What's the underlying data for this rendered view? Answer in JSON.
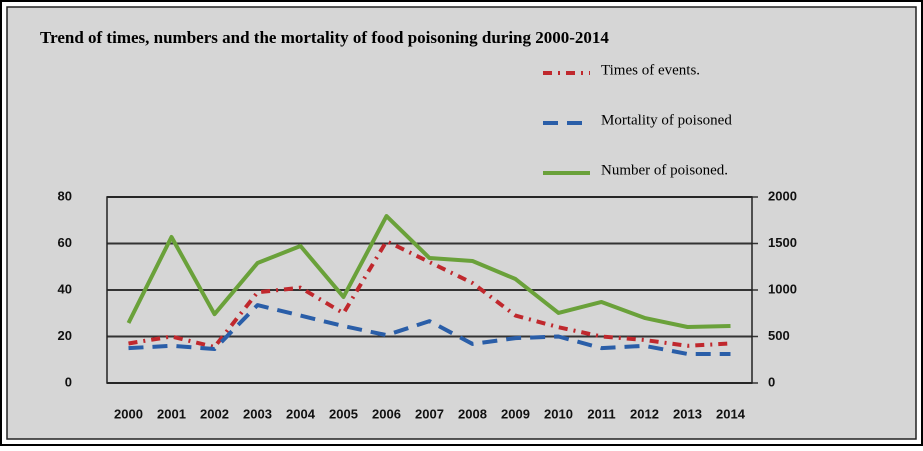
{
  "chart_data": {
    "type": "line",
    "title": "Trend of times, numbers and the mortality of food poisoning during 2000-2014",
    "categories": [
      "2000",
      "2001",
      "2002",
      "2003",
      "2004",
      "2005",
      "2006",
      "2007",
      "2008",
      "2009",
      "2010",
      "2011",
      "2012",
      "2013",
      "2014"
    ],
    "series": [
      {
        "name": "Times of events.",
        "color": "#c0282d",
        "values": [
          17,
          20,
          15.5,
          39,
          41,
          30,
          61,
          52,
          43,
          29,
          24,
          20,
          18.5,
          16,
          17
        ]
      },
      {
        "name": "Mortality of poisoned",
        "color": "#2a5ea8",
        "values": [
          15,
          16,
          14.6,
          33.5,
          29,
          24.5,
          20.6,
          26.6,
          16.8,
          19.3,
          20,
          15,
          16,
          12.5,
          12.5
        ]
      },
      {
        "name": "Number of poisoned.",
        "color": "#6aa13a",
        "axis": "y2",
        "values": [
          645,
          1570,
          740,
          1290,
          1473,
          925,
          1795,
          1344,
          1312,
          1118,
          753,
          871,
          700,
          602,
          613
        ]
      }
    ],
    "ylim": [
      0,
      80
    ],
    "yticks": [
      0,
      20,
      40,
      60,
      80
    ],
    "y2lim": [
      0,
      2000
    ],
    "y2ticks": [
      0,
      500,
      1000,
      1500,
      2000
    ],
    "grid": true,
    "legend": "top-right"
  }
}
